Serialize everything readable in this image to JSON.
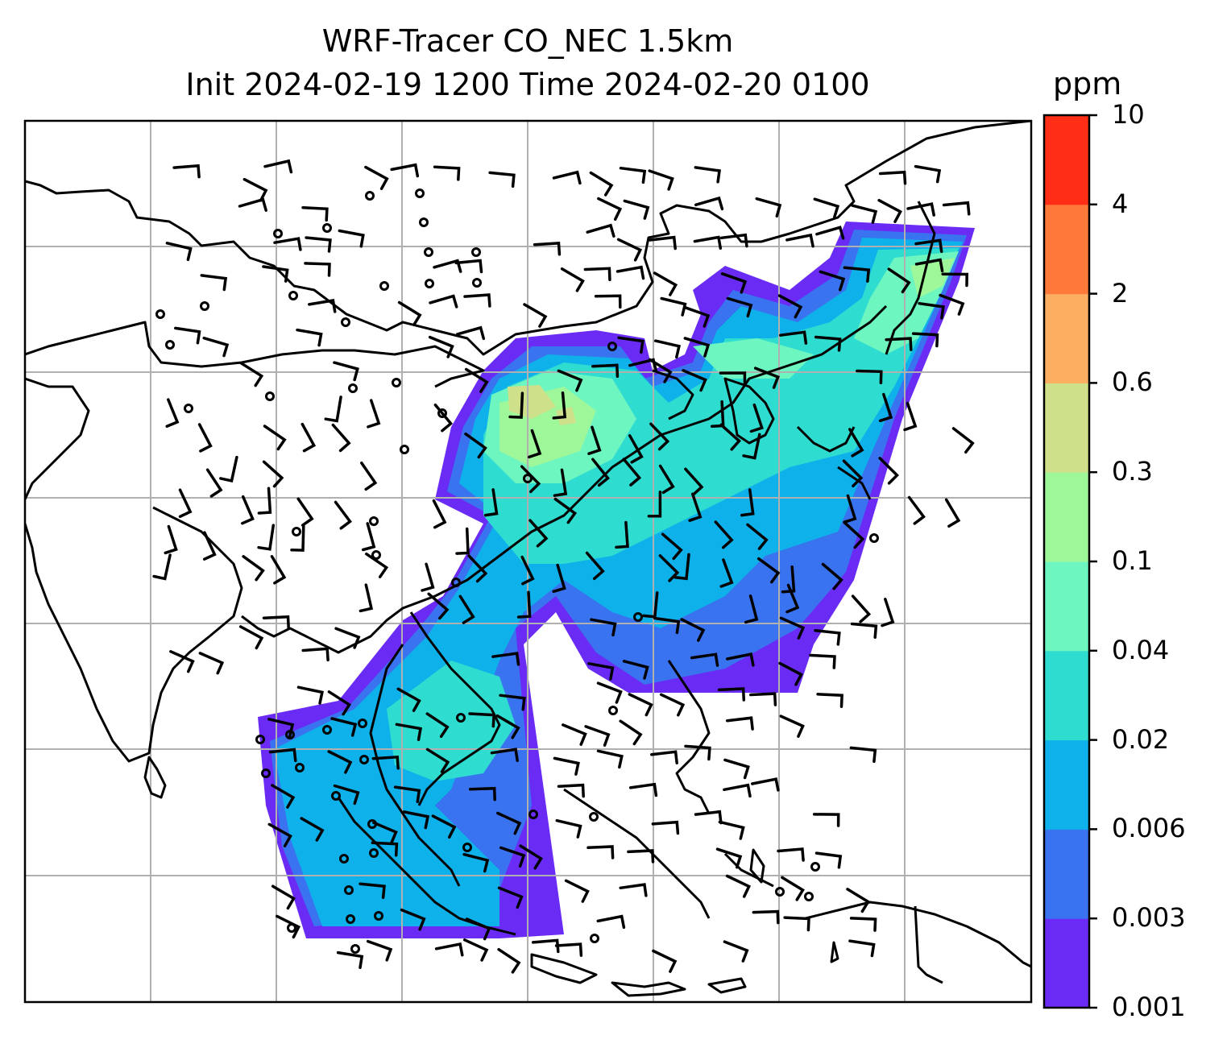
{
  "title": {
    "line1": "WRF-Tracer CO_NEC 1.5km",
    "line2": "Init 2024-02-19 1200 Time 2024-02-20 0100"
  },
  "colorbar": {
    "unit": "ppm",
    "levels": [
      "0.001",
      "0.003",
      "0.006",
      "0.02",
      "0.04",
      "0.1",
      "0.3",
      "0.6",
      "2",
      "4",
      "10"
    ],
    "colors": [
      "#6a2cf5",
      "#3a73f0",
      "#0fb1ea",
      "#2fdcd0",
      "#6ef6c0",
      "#9ef89a",
      "#cfe08a",
      "#fdae61",
      "#ff7a3a",
      "#ff2e14"
    ]
  },
  "map": {
    "coastline_color": "#000000",
    "gridline_color": "#b0b0b0",
    "barb_color": "#000000"
  }
}
